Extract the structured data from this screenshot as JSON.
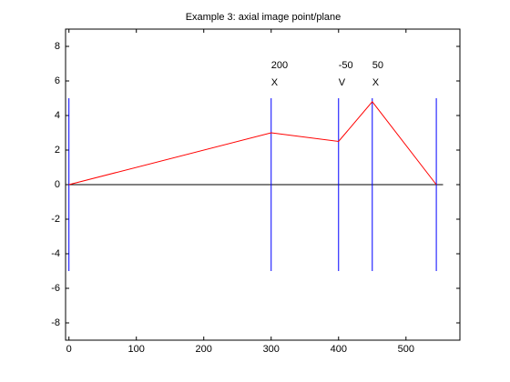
{
  "chart_data": {
    "type": "line",
    "title": "Example 3: axial image point/plane",
    "xlim": [
      -5,
      580
    ],
    "ylim": [
      -9,
      9
    ],
    "xticks": [
      0,
      100,
      200,
      300,
      400,
      500
    ],
    "yticks": [
      -8,
      -6,
      -4,
      -2,
      0,
      2,
      4,
      6,
      8
    ],
    "series": [
      {
        "color": "#000000",
        "x": [
          0,
          555
        ],
        "values": [
          0,
          0
        ]
      },
      {
        "color": "#0000ff",
        "x": [
          0,
          0
        ],
        "values": [
          -5,
          5
        ]
      },
      {
        "color": "#0000ff",
        "x": [
          300,
          300
        ],
        "values": [
          -5,
          5
        ]
      },
      {
        "color": "#0000ff",
        "x": [
          400,
          400
        ],
        "values": [
          -5,
          5
        ]
      },
      {
        "color": "#0000ff",
        "x": [
          450,
          450
        ],
        "values": [
          -5,
          5
        ]
      },
      {
        "color": "#0000ff",
        "x": [
          545,
          545
        ],
        "values": [
          -5,
          5
        ]
      },
      {
        "color": "#ff0000",
        "x": [
          0,
          300,
          400,
          450,
          545
        ],
        "values": [
          0,
          3,
          2.5,
          4.8,
          0
        ]
      }
    ],
    "annotations": [
      {
        "x": 300,
        "lines": [
          "200",
          "X"
        ]
      },
      {
        "x": 400,
        "lines": [
          "-50",
          "V"
        ]
      },
      {
        "x": 450,
        "lines": [
          "50",
          "X"
        ]
      }
    ]
  }
}
